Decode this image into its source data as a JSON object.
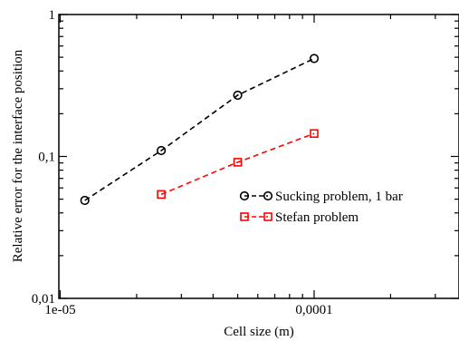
{
  "chart_data": {
    "type": "line",
    "xlabel": "Cell size (m)",
    "ylabel": "Relative error for the interface position",
    "xscale": "log",
    "yscale": "log",
    "xlim": [
      1e-05,
      0.0004
    ],
    "ylim": [
      0.01,
      1
    ],
    "x_ticks": [
      {
        "value": 1e-05,
        "label": "1e-05"
      },
      {
        "value": 0.0001,
        "label": "0,0001"
      }
    ],
    "y_ticks": [
      {
        "value": 0.01,
        "label": "0,01"
      },
      {
        "value": 0.1,
        "label": "0,1"
      },
      {
        "value": 1,
        "label": "1"
      }
    ],
    "legend_position": "right",
    "series": [
      {
        "name": "Sucking problem, 1 bar",
        "color": "#000000",
        "marker": "circle",
        "linestyle": "dashed",
        "x": [
          1.25e-05,
          2.5e-05,
          5e-05,
          0.0001
        ],
        "y": [
          0.049,
          0.11,
          0.27,
          0.49
        ]
      },
      {
        "name": "Stefan problem",
        "color": "#ff0000",
        "marker": "square",
        "linestyle": "dashed",
        "x": [
          2.5e-05,
          5e-05,
          0.0001
        ],
        "y": [
          0.054,
          0.091,
          0.145
        ]
      }
    ]
  }
}
